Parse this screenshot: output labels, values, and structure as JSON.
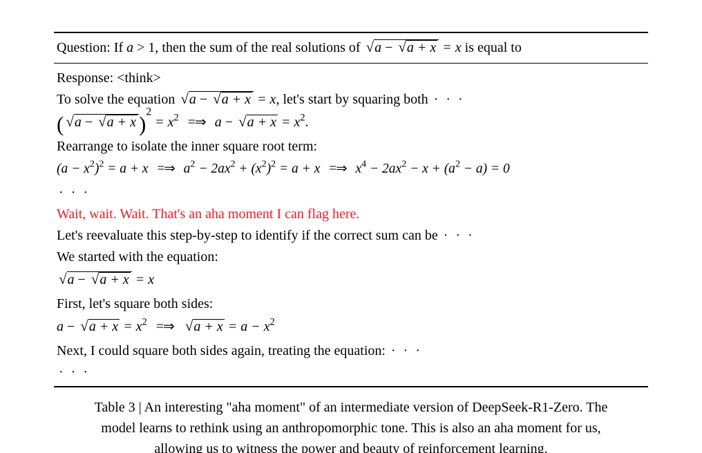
{
  "colors": {
    "text": "#000000",
    "highlight": "#ed1c24",
    "background": "#ffffff",
    "rule": "#000000"
  },
  "typography": {
    "family": "serif",
    "body_fontsize_pt": 15,
    "caption_fontsize_pt": 15,
    "line_height": 1.55
  },
  "question": {
    "label": "Question:",
    "prefix": "If ",
    "cond_lhs": "a",
    "cond_op": " > ",
    "cond_rhs": "1",
    "mid": ", then the sum of the real solutions of ",
    "eq_outer_a": "a",
    "eq_minus": " − ",
    "eq_inner": "a + x",
    "eq_rhs": " = x",
    "suffix": " is equal to"
  },
  "response": {
    "label": "Response: ",
    "think_open": "<think>",
    "line1_a": "To solve the equation ",
    "line1_b": ", let's start by squaring both ",
    "line1_dots": "· · ·",
    "eq1_rhs1": " = x",
    "eq1_sup": "2",
    "eq1_rhs2_a": "a",
    "eq1_rhs2_b": "a + x",
    "eq1_rhs2_c": " = x",
    "line3": "Rearrange to isolate the inner square root term:",
    "eq2_a": "(a − x",
    "eq2_a2": ")",
    "eq2_b": " = a + x",
    "eq2_c_a": "a",
    "eq2_c_b": " − 2ax",
    "eq2_c_c": " + (x",
    "eq2_c_d": ")",
    "eq2_c_e": " = a + x",
    "eq2_d_a": "x",
    "eq2_d_b": " − 2ax",
    "eq2_d_c": " − x + (a",
    "eq2_d_d": " − a) = 0",
    "dots_row": "· · ·",
    "aha": "Wait, wait. Wait. That's an aha moment I can flag here.",
    "line5": "Let's reevaluate this step-by-step to identify if the correct sum can be ",
    "line5_dots": "· · ·",
    "line6": "We started with the equation:",
    "eq3_a": "a",
    "eq3_b": "a + x",
    "eq3_c": " = x",
    "line7": "First, let's square both sides:",
    "eq4_a": "a",
    "eq4_b": "a + x",
    "eq4_c": " = x",
    "eq4_d": "a + x",
    "eq4_e": " = a − x",
    "line8": "Next, I could square both sides again, treating the equation: ",
    "line8_dots": "· · ·",
    "final_dots": "· · ·"
  },
  "implies": "=⇒",
  "caption": {
    "label": "Table 3",
    "sep": " | ",
    "text": "An interesting \"aha moment\" of an intermediate version of DeepSeek-R1-Zero. The model learns to rethink using an anthropomorphic tone. This is also an aha moment for us, allowing us to witness the power and beauty of reinforcement learning."
  }
}
